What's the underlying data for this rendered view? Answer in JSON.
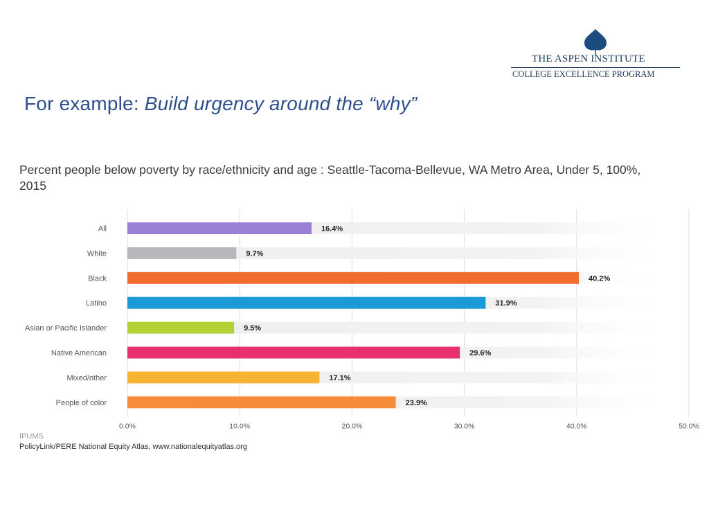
{
  "logo": {
    "name": "THE ASPEN INSTITUTE",
    "program": "COLLEGE EXCELLENCE PROGRAM",
    "leaf_color": "#1b4b7f"
  },
  "slide": {
    "title_prefix": "For example: ",
    "title_emphasis": "Build urgency around the “why”"
  },
  "chart_data": {
    "type": "bar",
    "orientation": "horizontal",
    "title": "Percent people below poverty by race/ethnicity and age : Seattle-Tacoma-Bellevue, WA Metro Area, Under 5, 100%, 2015",
    "categories": [
      "All",
      "White",
      "Black",
      "Latino",
      "Asian or Pacific Islander",
      "Native American",
      "Mixed/other",
      "People of color"
    ],
    "values": [
      16.4,
      9.7,
      40.2,
      31.9,
      9.5,
      29.6,
      17.1,
      23.9
    ],
    "value_labels": [
      "16.4%",
      "9.7%",
      "40.2%",
      "31.9%",
      "9.5%",
      "29.6%",
      "17.1%",
      "23.9%"
    ],
    "colors": [
      "#9b7fd4",
      "#b6b8bb",
      "#f26c2e",
      "#1a9ad6",
      "#b3d235",
      "#e8306d",
      "#f7b334",
      "#f78d3a"
    ],
    "xlim": [
      0,
      50
    ],
    "xticks": [
      0,
      10,
      20,
      30,
      40,
      50
    ],
    "xtick_labels": [
      "0.0%",
      "10.0%",
      "20.0%",
      "30.0%",
      "40.0%",
      "50.0%"
    ],
    "grid": true
  },
  "source": {
    "line1": "IPUMS",
    "line2": "PolicyLink/PERE National Equity Atlas, www.nationalequityatlas.org"
  }
}
